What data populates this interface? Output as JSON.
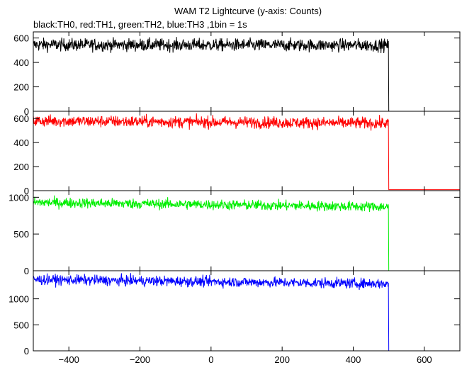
{
  "title": "WAM T2 Lightcurve (y-axis: Counts)",
  "subtitle": "black:TH0, red:TH1, green:TH2, blue:TH3 ,1bin = 1s",
  "chart_data": {
    "type": "line",
    "x_range": [
      -500,
      700
    ],
    "x_ticks": [
      -400,
      -200,
      0,
      200,
      400,
      600
    ],
    "x_tick_labels": [
      "−400",
      "−200",
      "0",
      "200",
      "400",
      "600"
    ],
    "bin_seconds": 1,
    "step_at": 500,
    "panels": [
      {
        "name": "TH0",
        "color": "#000000",
        "ylim": [
          0,
          650
        ],
        "yticks": [
          0,
          200,
          400,
          600
        ],
        "ytick_labels": [
          "0",
          "200",
          "400",
          "600"
        ],
        "level_start": 545,
        "level_end": 540,
        "noise": 26,
        "after": 0
      },
      {
        "name": "TH1",
        "color": "#ff0000",
        "ylim": [
          0,
          660
        ],
        "yticks": [
          0,
          200,
          400,
          600
        ],
        "ytick_labels": [
          "0",
          "200",
          "400",
          "600"
        ],
        "level_start": 580,
        "level_end": 560,
        "noise": 25,
        "after": 8
      },
      {
        "name": "TH2",
        "color": "#00ee00",
        "ylim": [
          0,
          1090
        ],
        "yticks": [
          0,
          500,
          1000
        ],
        "ytick_labels": [
          "0",
          "500",
          "1000"
        ],
        "level_start": 930,
        "level_end": 870,
        "noise": 35,
        "after": 0
      },
      {
        "name": "TH3",
        "color": "#0000ff",
        "ylim": [
          0,
          1540
        ],
        "yticks": [
          0,
          500,
          1000
        ],
        "ytick_labels": [
          "0",
          "500",
          "1000"
        ],
        "level_start": 1370,
        "level_end": 1290,
        "noise": 50,
        "after": 0
      }
    ]
  }
}
